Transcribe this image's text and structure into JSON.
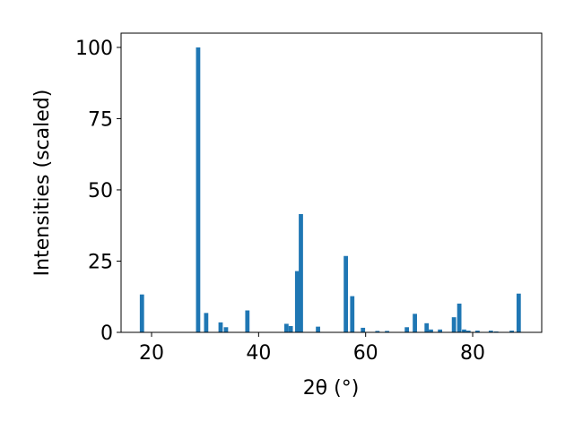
{
  "chart_data": {
    "type": "bar",
    "x_label": "2θ (°)",
    "y_label": "Intensities (scaled)",
    "x": [
      18.2,
      28.7,
      30.2,
      32.9,
      33.9,
      37.9,
      45.2,
      46.0,
      47.2,
      47.9,
      51.1,
      56.3,
      57.5,
      59.5,
      62.2,
      64.0,
      67.7,
      69.2,
      71.4,
      72.2,
      73.9,
      76.5,
      77.5,
      78.4,
      79.2,
      80.9,
      83.4,
      84.4,
      87.3,
      88.6
    ],
    "values": [
      13.3,
      100,
      6.8,
      3.5,
      1.8,
      7.7,
      3.0,
      2.2,
      21.5,
      41.5,
      2.0,
      26.8,
      12.7,
      1.6,
      0.5,
      0.5,
      1.8,
      6.5,
      3.2,
      1.0,
      1.0,
      5.3,
      10.1,
      1.0,
      0.6,
      0.6,
      0.6,
      0.3,
      0.6,
      13.6
    ],
    "color": "#1f77b4",
    "xlim": [
      14.3,
      92.9
    ],
    "ylim": [
      0,
      105
    ],
    "xticks": [
      20,
      40,
      60,
      80
    ],
    "yticks": [
      0,
      25,
      50,
      75,
      100
    ]
  }
}
